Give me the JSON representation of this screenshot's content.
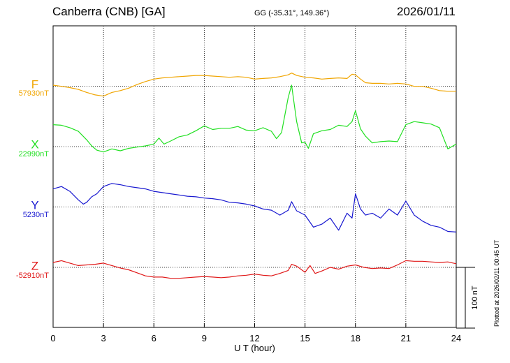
{
  "header": {
    "title": "Canberra (CNB)  [GA]",
    "coords": "GG (-35.31°, 149.36°)",
    "date": "2026/01/11"
  },
  "footer": {
    "plotted": "Plotted at 2026/02/11 00:45 UT"
  },
  "chart_data": {
    "type": "line",
    "title": "Canberra (CNB)  [GA]",
    "xlabel": "U T (hour)",
    "xlim": [
      0,
      24
    ],
    "xticks": [
      "0",
      "3",
      "6",
      "9",
      "12",
      "15",
      "18",
      "21",
      "24"
    ],
    "grid": true,
    "scale_bar": "100 nT",
    "colors": {
      "F": "#f0a500",
      "X": "#22e022",
      "Y": "#1818d0",
      "Z": "#e01818"
    },
    "series": [
      {
        "name": "F",
        "baseline_label": "57930nT",
        "x": [
          0,
          0.5,
          1,
          1.5,
          2,
          2.5,
          3,
          3.5,
          4,
          4.5,
          5,
          5.5,
          6,
          6.5,
          7,
          7.5,
          8,
          8.5,
          9,
          9.5,
          10,
          10.5,
          11,
          11.5,
          12,
          12.5,
          13,
          13.5,
          14,
          14.2,
          14.5,
          15,
          15.5,
          16,
          16.5,
          17,
          17.5,
          17.8,
          18,
          18.3,
          18.6,
          19,
          19.5,
          20,
          20.5,
          21,
          21.5,
          22,
          22.5,
          23,
          23.5,
          24
        ],
        "y": [
          57930,
          57928,
          57926,
          57923,
          57918,
          57914,
          57912,
          57918,
          57921,
          57925,
          57931,
          57936,
          57940,
          57942,
          57943,
          57944,
          57945,
          57946,
          57946,
          57945,
          57944,
          57943,
          57944,
          57943,
          57940,
          57941,
          57942,
          57944,
          57947,
          57950,
          57946,
          57943,
          57942,
          57940,
          57941,
          57942,
          57941,
          57948,
          57947,
          57940,
          57934,
          57933,
          57933,
          57932,
          57933,
          57932,
          57928,
          57928,
          57925,
          57921,
          57920,
          57920
        ]
      },
      {
        "name": "X",
        "baseline_label": "22990nT",
        "x": [
          0,
          0.5,
          1,
          1.5,
          2,
          2.3,
          2.6,
          3,
          3.5,
          4,
          4.5,
          5,
          5.5,
          6,
          6.3,
          6.6,
          7,
          7.5,
          8,
          8.5,
          9,
          9.5,
          10,
          10.5,
          11,
          11.5,
          12,
          12.5,
          13,
          13.3,
          13.6,
          14,
          14.2,
          14.5,
          14.8,
          15,
          15.2,
          15.5,
          16,
          16.5,
          17,
          17.5,
          17.8,
          18,
          18.3,
          18.6,
          19,
          19.5,
          20,
          20.5,
          21,
          21.5,
          22,
          22.5,
          23,
          23.5,
          24
        ],
        "y": [
          23025,
          23024,
          23020,
          23014,
          23000,
          22990,
          22983,
          22980,
          22985,
          22982,
          22986,
          22988,
          22990,
          22993,
          23003,
          22993,
          22998,
          23005,
          23008,
          23015,
          23023,
          23017,
          23019,
          23019,
          23022,
          23016,
          23015,
          23020,
          23014,
          23002,
          23012,
          23070,
          23090,
          23030,
          22995,
          22996,
          22986,
          23010,
          23015,
          23017,
          23024,
          23022,
          23030,
          23048,
          23018,
          23006,
          22995,
          22997,
          22998,
          22997,
          23025,
          23030,
          23028,
          23026,
          23020,
          22985,
          22993
        ]
      },
      {
        "name": "Y",
        "baseline_label": "5230nT",
        "x": [
          0,
          0.5,
          1,
          1.5,
          1.8,
          2,
          2.3,
          2.6,
          3,
          3.5,
          4,
          4.5,
          5,
          5.5,
          6,
          6.5,
          7,
          7.5,
          8,
          8.5,
          9,
          9.5,
          10,
          10.5,
          11,
          11.5,
          12,
          12.5,
          13,
          13.5,
          14,
          14.2,
          14.5,
          15,
          15.5,
          16,
          16.5,
          17,
          17.5,
          17.8,
          18,
          18.3,
          18.6,
          19,
          19.5,
          20,
          20.5,
          21,
          21.5,
          22,
          22.5,
          23,
          23.5,
          24
        ],
        "y": [
          5258,
          5262,
          5254,
          5240,
          5233,
          5236,
          5245,
          5250,
          5262,
          5267,
          5265,
          5262,
          5260,
          5258,
          5254,
          5252,
          5250,
          5248,
          5246,
          5245,
          5243,
          5242,
          5240,
          5236,
          5235,
          5233,
          5230,
          5225,
          5223,
          5215,
          5223,
          5237,
          5222,
          5215,
          5195,
          5200,
          5210,
          5190,
          5218,
          5210,
          5250,
          5225,
          5215,
          5218,
          5210,
          5225,
          5215,
          5238,
          5215,
          5205,
          5198,
          5195,
          5188,
          5187
        ]
      },
      {
        "name": "Z",
        "baseline_label": "-52910nT",
        "x": [
          0,
          0.5,
          1,
          1.5,
          2,
          2.5,
          3,
          3.5,
          4,
          4.5,
          5,
          5.5,
          6,
          6.5,
          7,
          7.5,
          8,
          8.5,
          9,
          9.5,
          10,
          10.5,
          11,
          11.5,
          12,
          12.5,
          13,
          13.5,
          14,
          14.2,
          14.5,
          15,
          15.3,
          15.6,
          16,
          16.5,
          17,
          17.5,
          18,
          18.5,
          19,
          19.5,
          20,
          20.5,
          21,
          21.5,
          22,
          22.5,
          23,
          23.5,
          24
        ],
        "y": [
          -52902,
          -52899,
          -52903,
          -52907,
          -52906,
          -52905,
          -52903,
          -52907,
          -52911,
          -52914,
          -52919,
          -52924,
          -52926,
          -52926,
          -52928,
          -52928,
          -52927,
          -52926,
          -52925,
          -52926,
          -52927,
          -52926,
          -52924,
          -52923,
          -52921,
          -52923,
          -52924,
          -52920,
          -52915,
          -52905,
          -52908,
          -52918,
          -52907,
          -52920,
          -52916,
          -52910,
          -52913,
          -52908,
          -52906,
          -52910,
          -52912,
          -52911,
          -52912,
          -52906,
          -52899,
          -52900,
          -52900,
          -52901,
          -52902,
          -52901,
          -52904
        ]
      }
    ]
  }
}
